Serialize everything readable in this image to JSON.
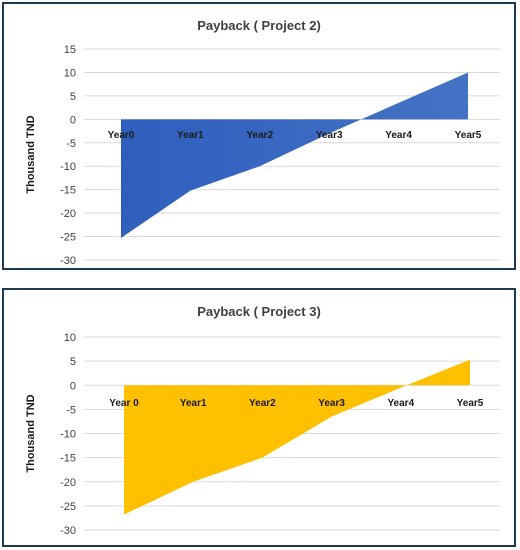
{
  "chart_data": [
    {
      "type": "area",
      "title": "Payback ( Project 2)",
      "ylabel": "Thousand TND",
      "xlabel": "",
      "categories": [
        "Year0",
        "Year1",
        "Year2",
        "Year3",
        "Year4",
        "Year5"
      ],
      "series": [
        {
          "values": [
            -25.3,
            -15.2,
            -10,
            -3,
            3.5,
            10
          ]
        }
      ],
      "ylim": [
        -30,
        15
      ],
      "yticks": [
        15,
        10,
        5,
        0,
        -5,
        -10,
        -15,
        -20,
        -25,
        -30
      ],
      "grid": true,
      "color": "#4472c4",
      "color_light": "#2e5fbe"
    },
    {
      "type": "area",
      "title": "Payback ( Project 3)",
      "ylabel": "Thousand TND",
      "xlabel": "",
      "categories": [
        "Year 0",
        "Year1",
        "Year2",
        "Year3",
        "Year4",
        "Year5"
      ],
      "series": [
        {
          "values": [
            -26.8,
            -20,
            -15,
            -6.5,
            -0.5,
            5.3
          ]
        }
      ],
      "ylim": [
        -30,
        10
      ],
      "yticks": [
        10,
        5,
        0,
        -5,
        -10,
        -15,
        -20,
        -25,
        -30
      ],
      "grid": true,
      "color": "#ffc000",
      "color_light": "#ffc000"
    }
  ]
}
